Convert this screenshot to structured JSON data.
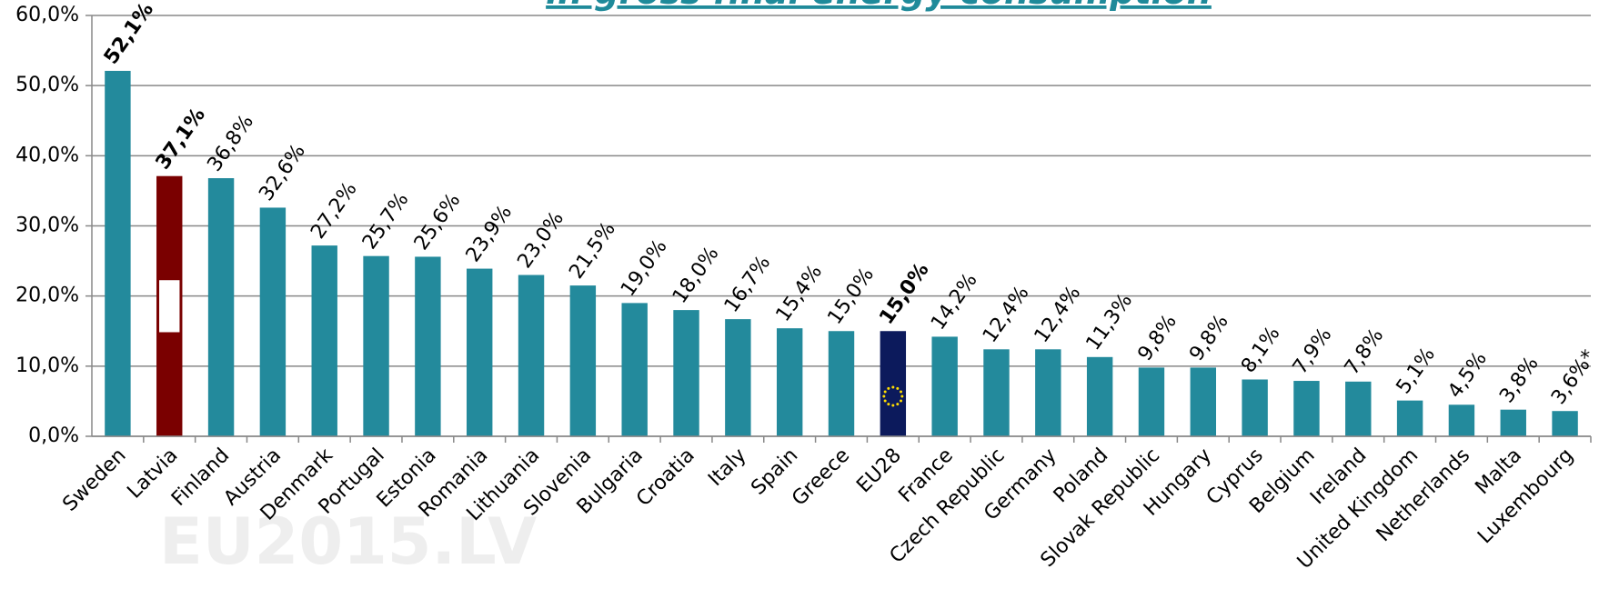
{
  "chart_data": {
    "type": "bar",
    "title": "in gross final energy consumption",
    "watermark": "EU2015.LV",
    "categories": [
      "Sweden",
      "Latvia",
      "Finland",
      "Austria",
      "Denmark",
      "Portugal",
      "Estonia",
      "Romania",
      "Lithuania",
      "Slovenia",
      "Bulgaria",
      "Croatia",
      "Italy",
      "Spain",
      "Greece",
      "EU28",
      "France",
      "Czech Republic",
      "Germany",
      "Poland",
      "Slovak Republic",
      "Hungary",
      "Cyprus",
      "Belgium",
      "Ireland",
      "United Kingdom",
      "Netherlands",
      "Malta",
      "Luxembourg"
    ],
    "values": [
      52.1,
      37.1,
      36.8,
      32.6,
      27.2,
      25.7,
      25.6,
      23.9,
      23.0,
      21.5,
      19.0,
      18.0,
      16.7,
      15.4,
      15.0,
      15.0,
      14.2,
      12.4,
      12.4,
      11.3,
      9.8,
      9.8,
      8.1,
      7.9,
      7.8,
      5.1,
      4.5,
      3.8,
      3.6
    ],
    "value_labels": [
      "52,1%",
      "37,1%",
      "36,8%",
      "32,6%",
      "27,2%",
      "25,7%",
      "25,6%",
      "23,9%",
      "23,0%",
      "21,5%",
      "19,0%",
      "18,0%",
      "16,7%",
      "15,4%",
      "15,0%",
      "15,0%",
      "14,2%",
      "12,4%",
      "12,4%",
      "11,3%",
      "9,8%",
      "9,8%",
      "8,1%",
      "7,9%",
      "7,8%",
      "5,1%",
      "4,5%",
      "3,8%",
      "3,6%*"
    ],
    "colors": [
      "#238a9c",
      "#7a0000",
      "#238a9c",
      "#238a9c",
      "#238a9c",
      "#238a9c",
      "#238a9c",
      "#238a9c",
      "#238a9c",
      "#238a9c",
      "#238a9c",
      "#238a9c",
      "#238a9c",
      "#238a9c",
      "#238a9c",
      "#0c1a5c",
      "#238a9c",
      "#238a9c",
      "#238a9c",
      "#238a9c",
      "#238a9c",
      "#238a9c",
      "#238a9c",
      "#238a9c",
      "#238a9c",
      "#238a9c",
      "#238a9c",
      "#238a9c",
      "#238a9c"
    ],
    "bold_label_indices": [
      0,
      1,
      15
    ],
    "ylim": [
      0,
      60
    ],
    "yticks": [
      {
        "value": 0,
        "label": "0,0%"
      },
      {
        "value": 10,
        "label": "10,0%"
      },
      {
        "value": 20,
        "label": "20,0%"
      },
      {
        "value": 30,
        "label": "30,0%"
      },
      {
        "value": 40,
        "label": "40,0%"
      },
      {
        "value": 50,
        "label": "50,0%"
      },
      {
        "value": 60,
        "label": "60,0%"
      }
    ],
    "grid": true
  }
}
